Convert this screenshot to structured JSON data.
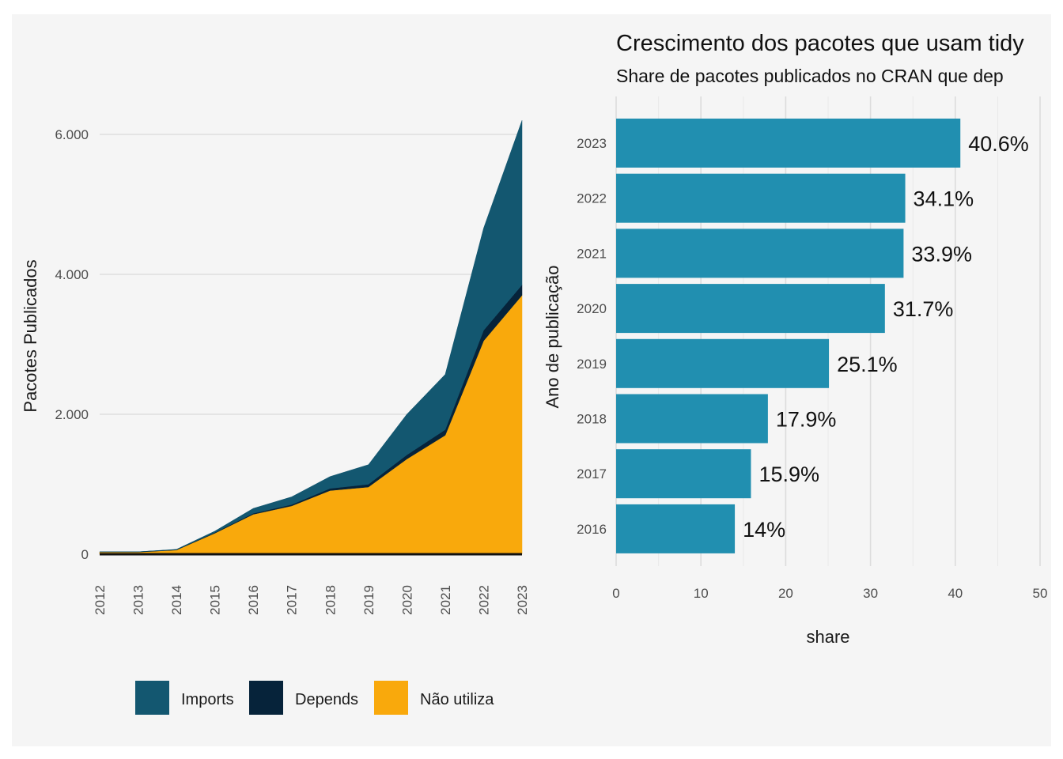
{
  "chart_data": [
    {
      "type": "area",
      "stacked": true,
      "x": [
        "2012",
        "2013",
        "2014",
        "2015",
        "2016",
        "2017",
        "2018",
        "2019",
        "2020",
        "2021",
        "2022",
        "2023"
      ],
      "series": [
        {
          "name": "Não utiliza",
          "color": "#F9A90C",
          "values": [
            30,
            30,
            60,
            300,
            570,
            690,
            910,
            960,
            1360,
            1700,
            3050,
            3700
          ]
        },
        {
          "name": "Depends",
          "color": "#06233A",
          "values": [
            5,
            5,
            5,
            10,
            15,
            20,
            30,
            40,
            60,
            80,
            150,
            150
          ]
        },
        {
          "name": "Imports",
          "color": "#135770",
          "values": [
            0,
            0,
            5,
            20,
            70,
            110,
            170,
            280,
            580,
            790,
            1460,
            2350
          ]
        }
      ],
      "ylabel": "Pacotes Publicados",
      "xlabel": "",
      "ylim": [
        0,
        6200
      ],
      "yticks": [
        {
          "value": 0,
          "label": "0"
        },
        {
          "value": 2000,
          "label": "2.000"
        },
        {
          "value": 4000,
          "label": "4.000"
        },
        {
          "value": 6000,
          "label": "6.000"
        }
      ],
      "grid": "horizontal",
      "legend_position": "bottom",
      "legend": [
        {
          "label": "Imports",
          "color": "#135770"
        },
        {
          "label": "Depends",
          "color": "#06233A"
        },
        {
          "label": "Não utiliza",
          "color": "#F9A90C"
        }
      ]
    },
    {
      "type": "bar",
      "orientation": "horizontal",
      "title": "Crescimento dos pacotes que usam tidy",
      "subtitle": "Share de pacotes publicados no CRAN que dep",
      "categories": [
        "2023",
        "2022",
        "2021",
        "2020",
        "2019",
        "2018",
        "2017",
        "2016"
      ],
      "values": [
        40.6,
        34.1,
        33.9,
        31.7,
        25.1,
        17.9,
        15.9,
        14
      ],
      "labels": [
        "40.6%",
        "34.1%",
        "33.9%",
        "31.7%",
        "25.1%",
        "17.9%",
        "15.9%",
        "14%"
      ],
      "xlabel": "share",
      "ylabel": "Ano de publicação",
      "xlim": [
        0,
        50
      ],
      "xticks": [
        "0",
        "10",
        "20",
        "30",
        "40",
        "50"
      ],
      "bar_color": "#218FB0",
      "grid": "vertical"
    }
  ]
}
